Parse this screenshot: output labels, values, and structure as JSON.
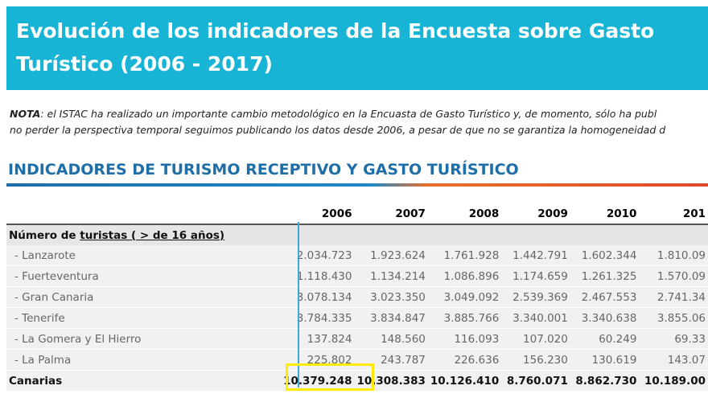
{
  "header": {
    "title": "Evolución de los indicadores de la Encuesta sobre Gasto Turístico (2006 - 2017)"
  },
  "note": {
    "label": "NOTA",
    "lines": [
      ": el ISTAC ha realizado un importante cambio metodológico en la Encuasta de Gasto Turístico y, de momento, sólo ha publ",
      "no perder la perspectiva temporal seguimos publicando los datos desde 2006, a pesar de que no se garantiza la homogeneidad d"
    ]
  },
  "section": {
    "title": "INDICADORES DE TURISMO RECEPTIVO Y GASTO TURÍSTICO"
  },
  "table": {
    "columns": [
      "2006",
      "2007",
      "2008",
      "2009",
      "2010",
      "201"
    ],
    "group": {
      "prefix": "Número de ",
      "label": "turistas ( > de 16 años)"
    },
    "rows": [
      [
        "- Lanzarote",
        "2.034.723",
        "1.923.624",
        "1.761.928",
        "1.442.791",
        "1.602.344",
        "1.810.09"
      ],
      [
        "- Fuerteventura",
        "1.118.430",
        "1.134.214",
        "1.086.896",
        "1.174.659",
        "1.261.325",
        "1.570.09"
      ],
      [
        "- Gran Canaria",
        "3.078.134",
        "3.023.350",
        "3.049.092",
        "2.539.369",
        "2.467.553",
        "2.741.34"
      ],
      [
        "- Tenerife",
        "3.784.335",
        "3.834.847",
        "3.885.766",
        "3.340.001",
        "3.340.638",
        "3.855.06"
      ],
      [
        "- La Gomera y El Hierro",
        "137.824",
        "148.560",
        "116.093",
        "107.020",
        "60.249",
        "69.33"
      ],
      [
        "- La Palma",
        "225.802",
        "243.787",
        "226.636",
        "156.230",
        "130.619",
        "143.07"
      ]
    ],
    "total": [
      "Canarias",
      "10.379.248",
      "10.308.383",
      "10.126.410",
      "8.760.071",
      "8.862.730",
      "10.189.00"
    ]
  }
}
